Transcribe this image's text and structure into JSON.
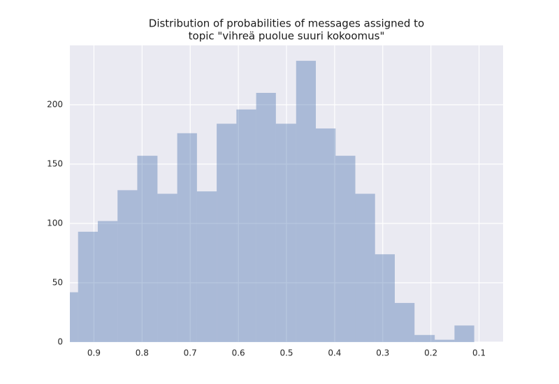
{
  "chart_data": {
    "type": "histogram",
    "title": [
      "Distribution of probabilities of messages assigned to",
      "topic \"vihreä puolue suuri kokoomus\""
    ],
    "bins": [
      0.11,
      0.151,
      0.192,
      0.234,
      0.275,
      0.316,
      0.357,
      0.398,
      0.439,
      0.48,
      0.522,
      0.563,
      0.604,
      0.645,
      0.686,
      0.727,
      0.768,
      0.81,
      0.851,
      0.892,
      0.933,
      0.974
    ],
    "values": [
      14,
      2,
      6,
      33,
      74,
      125,
      157,
      180,
      237,
      184,
      210,
      196,
      184,
      127,
      176,
      125,
      157,
      128,
      102,
      93,
      42
    ],
    "color": "#4c72b0",
    "xlim": [
      0.95,
      0.05
    ],
    "xticks": [
      0.9,
      0.8,
      0.7,
      0.6,
      0.5,
      0.4,
      0.3,
      0.2,
      0.1
    ],
    "ylim": [
      0,
      250
    ],
    "yticks": [
      0,
      50,
      100,
      150,
      200
    ],
    "grid": true
  }
}
